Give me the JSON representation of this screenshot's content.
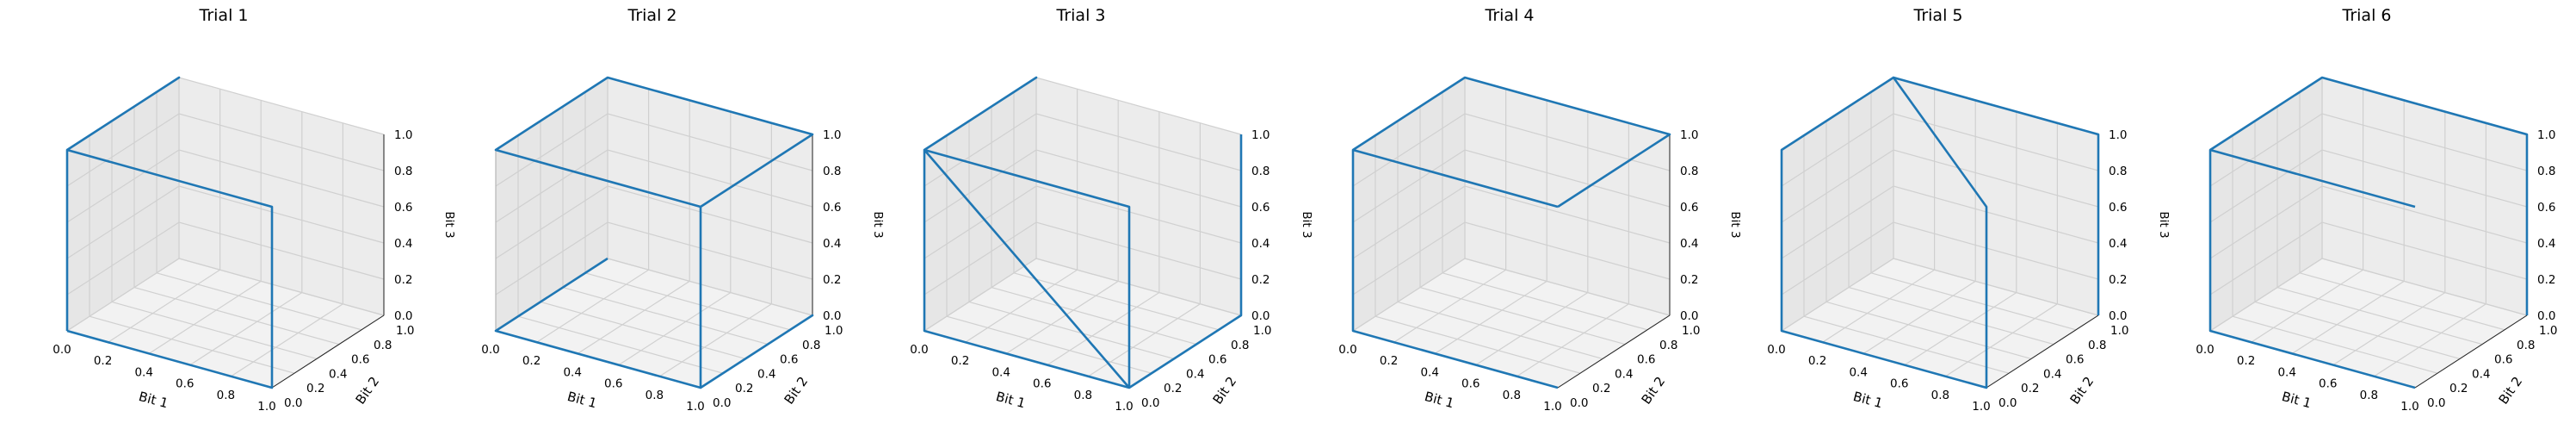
{
  "chart_data": [
    {
      "type": "line",
      "projection": "3d",
      "title": "Trial 1",
      "xlabel": "Bit 1",
      "ylabel": "Bit 2",
      "zlabel": "Bit 3",
      "xlim": [
        0,
        1
      ],
      "ylim": [
        0,
        1
      ],
      "zlim": [
        0,
        1
      ],
      "ticks": [
        0.0,
        0.2,
        0.4,
        0.6,
        0.8,
        1.0
      ],
      "tick_labels": [
        "0.0",
        "0.2",
        "0.4",
        "0.6",
        "0.8",
        "1.0"
      ],
      "grid": true,
      "color": "#1f77b4",
      "path": [
        [
          0,
          0,
          0
        ],
        [
          1,
          0,
          0
        ],
        [
          1,
          0,
          1
        ],
        [
          0,
          0,
          1
        ],
        [
          0,
          1,
          1
        ],
        [
          0,
          0,
          1
        ],
        [
          0,
          0,
          0
        ]
      ]
    },
    {
      "type": "line",
      "projection": "3d",
      "title": "Trial 2",
      "xlabel": "Bit 1",
      "ylabel": "Bit 2",
      "zlabel": "Bit 3",
      "xlim": [
        0,
        1
      ],
      "ylim": [
        0,
        1
      ],
      "zlim": [
        0,
        1
      ],
      "ticks": [
        0.0,
        0.2,
        0.4,
        0.6,
        0.8,
        1.0
      ],
      "tick_labels": [
        "0.0",
        "0.2",
        "0.4",
        "0.6",
        "0.8",
        "1.0"
      ],
      "grid": true,
      "color": "#1f77b4",
      "path": [
        [
          0,
          1,
          0
        ],
        [
          0,
          0,
          0
        ],
        [
          1,
          0,
          0
        ],
        [
          1,
          1,
          0
        ],
        [
          1,
          0,
          0
        ],
        [
          1,
          0,
          1
        ],
        [
          0,
          0,
          1
        ],
        [
          0,
          1,
          1
        ],
        [
          1,
          1,
          1
        ],
        [
          1,
          0,
          1
        ]
      ]
    },
    {
      "type": "line",
      "projection": "3d",
      "title": "Trial 3",
      "xlabel": "Bit 1",
      "ylabel": "Bit 2",
      "zlabel": "Bit 3",
      "xlim": [
        0,
        1
      ],
      "ylim": [
        0,
        1
      ],
      "zlim": [
        0,
        1
      ],
      "ticks": [
        0.0,
        0.2,
        0.4,
        0.6,
        0.8,
        1.0
      ],
      "tick_labels": [
        "0.0",
        "0.2",
        "0.4",
        "0.6",
        "0.8",
        "1.0"
      ],
      "grid": true,
      "color": "#1f77b4",
      "path": [
        [
          1,
          1,
          1
        ],
        [
          1,
          1,
          0
        ],
        [
          1,
          0,
          0
        ],
        [
          0,
          0,
          0
        ],
        [
          0,
          0,
          1
        ],
        [
          0,
          1,
          1
        ],
        [
          0,
          0,
          1
        ],
        [
          1,
          0,
          1
        ],
        [
          1,
          0,
          0
        ],
        [
          0,
          0,
          1
        ]
      ]
    },
    {
      "type": "line",
      "projection": "3d",
      "title": "Trial 4",
      "xlabel": "Bit 1",
      "ylabel": "Bit 2",
      "zlabel": "Bit 3",
      "xlim": [
        0,
        1
      ],
      "ylim": [
        0,
        1
      ],
      "zlim": [
        0,
        1
      ],
      "ticks": [
        0.0,
        0.2,
        0.4,
        0.6,
        0.8,
        1.0
      ],
      "tick_labels": [
        "0.0",
        "0.2",
        "0.4",
        "0.6",
        "0.8",
        "1.0"
      ],
      "grid": true,
      "color": "#1f77b4",
      "path": [
        [
          1,
          1,
          0
        ],
        [
          1,
          1,
          0
        ]
      ],
      "segments": [
        [
          [
            1,
            1,
            0
          ],
          [
            1,
            1,
            0
          ]
        ],
        [
          [
            1,
            0,
            0
          ],
          [
            0,
            0,
            0
          ],
          [
            0,
            0,
            1
          ],
          [
            0,
            1,
            1
          ],
          [
            1,
            1,
            1
          ],
          [
            1,
            0,
            1
          ]
        ],
        [
          [
            0,
            0,
            1
          ],
          [
            1,
            0,
            1
          ]
        ]
      ]
    },
    {
      "type": "line",
      "projection": "3d",
      "title": "Trial 5",
      "xlabel": "Bit 1",
      "ylabel": "Bit 2",
      "zlabel": "Bit 3",
      "xlim": [
        0,
        1
      ],
      "ylim": [
        0,
        1
      ],
      "zlim": [
        0,
        1
      ],
      "ticks": [
        0.0,
        0.2,
        0.4,
        0.6,
        0.8,
        1.0
      ],
      "tick_labels": [
        "0.0",
        "0.2",
        "0.4",
        "0.6",
        "0.8",
        "1.0"
      ],
      "grid": true,
      "color": "#1f77b4",
      "path": [
        [
          1,
          1,
          0
        ],
        [
          1,
          1,
          1
        ],
        [
          0,
          1,
          1
        ],
        [
          1,
          0,
          1
        ],
        [
          1,
          0,
          0
        ],
        [
          0,
          0,
          0
        ],
        [
          0,
          0,
          1
        ],
        [
          0,
          1,
          1
        ]
      ]
    },
    {
      "type": "line",
      "projection": "3d",
      "title": "Trial 6",
      "xlabel": "Bit 1",
      "ylabel": "Bit 2",
      "zlabel": "Bit 3",
      "xlim": [
        0,
        1
      ],
      "ylim": [
        0,
        1
      ],
      "zlim": [
        0,
        1
      ],
      "ticks": [
        0.0,
        0.2,
        0.4,
        0.6,
        0.8,
        1.0
      ],
      "tick_labels": [
        "0.0",
        "0.2",
        "0.4",
        "0.6",
        "0.8",
        "1.0"
      ],
      "grid": true,
      "color": "#1f77b4",
      "path": [
        [
          1,
          0,
          0
        ],
        [
          0,
          0,
          0
        ],
        [
          0,
          0,
          1
        ],
        [
          0,
          1,
          1
        ],
        [
          1,
          1,
          1
        ],
        [
          1,
          1,
          0
        ]
      ],
      "segments": [
        [
          [
            1,
            0,
            0
          ],
          [
            0,
            0,
            0
          ],
          [
            0,
            0,
            1
          ],
          [
            0,
            1,
            1
          ],
          [
            1,
            1,
            1
          ],
          [
            1,
            1,
            0
          ]
        ],
        [
          [
            0,
            0,
            1
          ],
          [
            1,
            0,
            1
          ]
        ]
      ]
    }
  ]
}
